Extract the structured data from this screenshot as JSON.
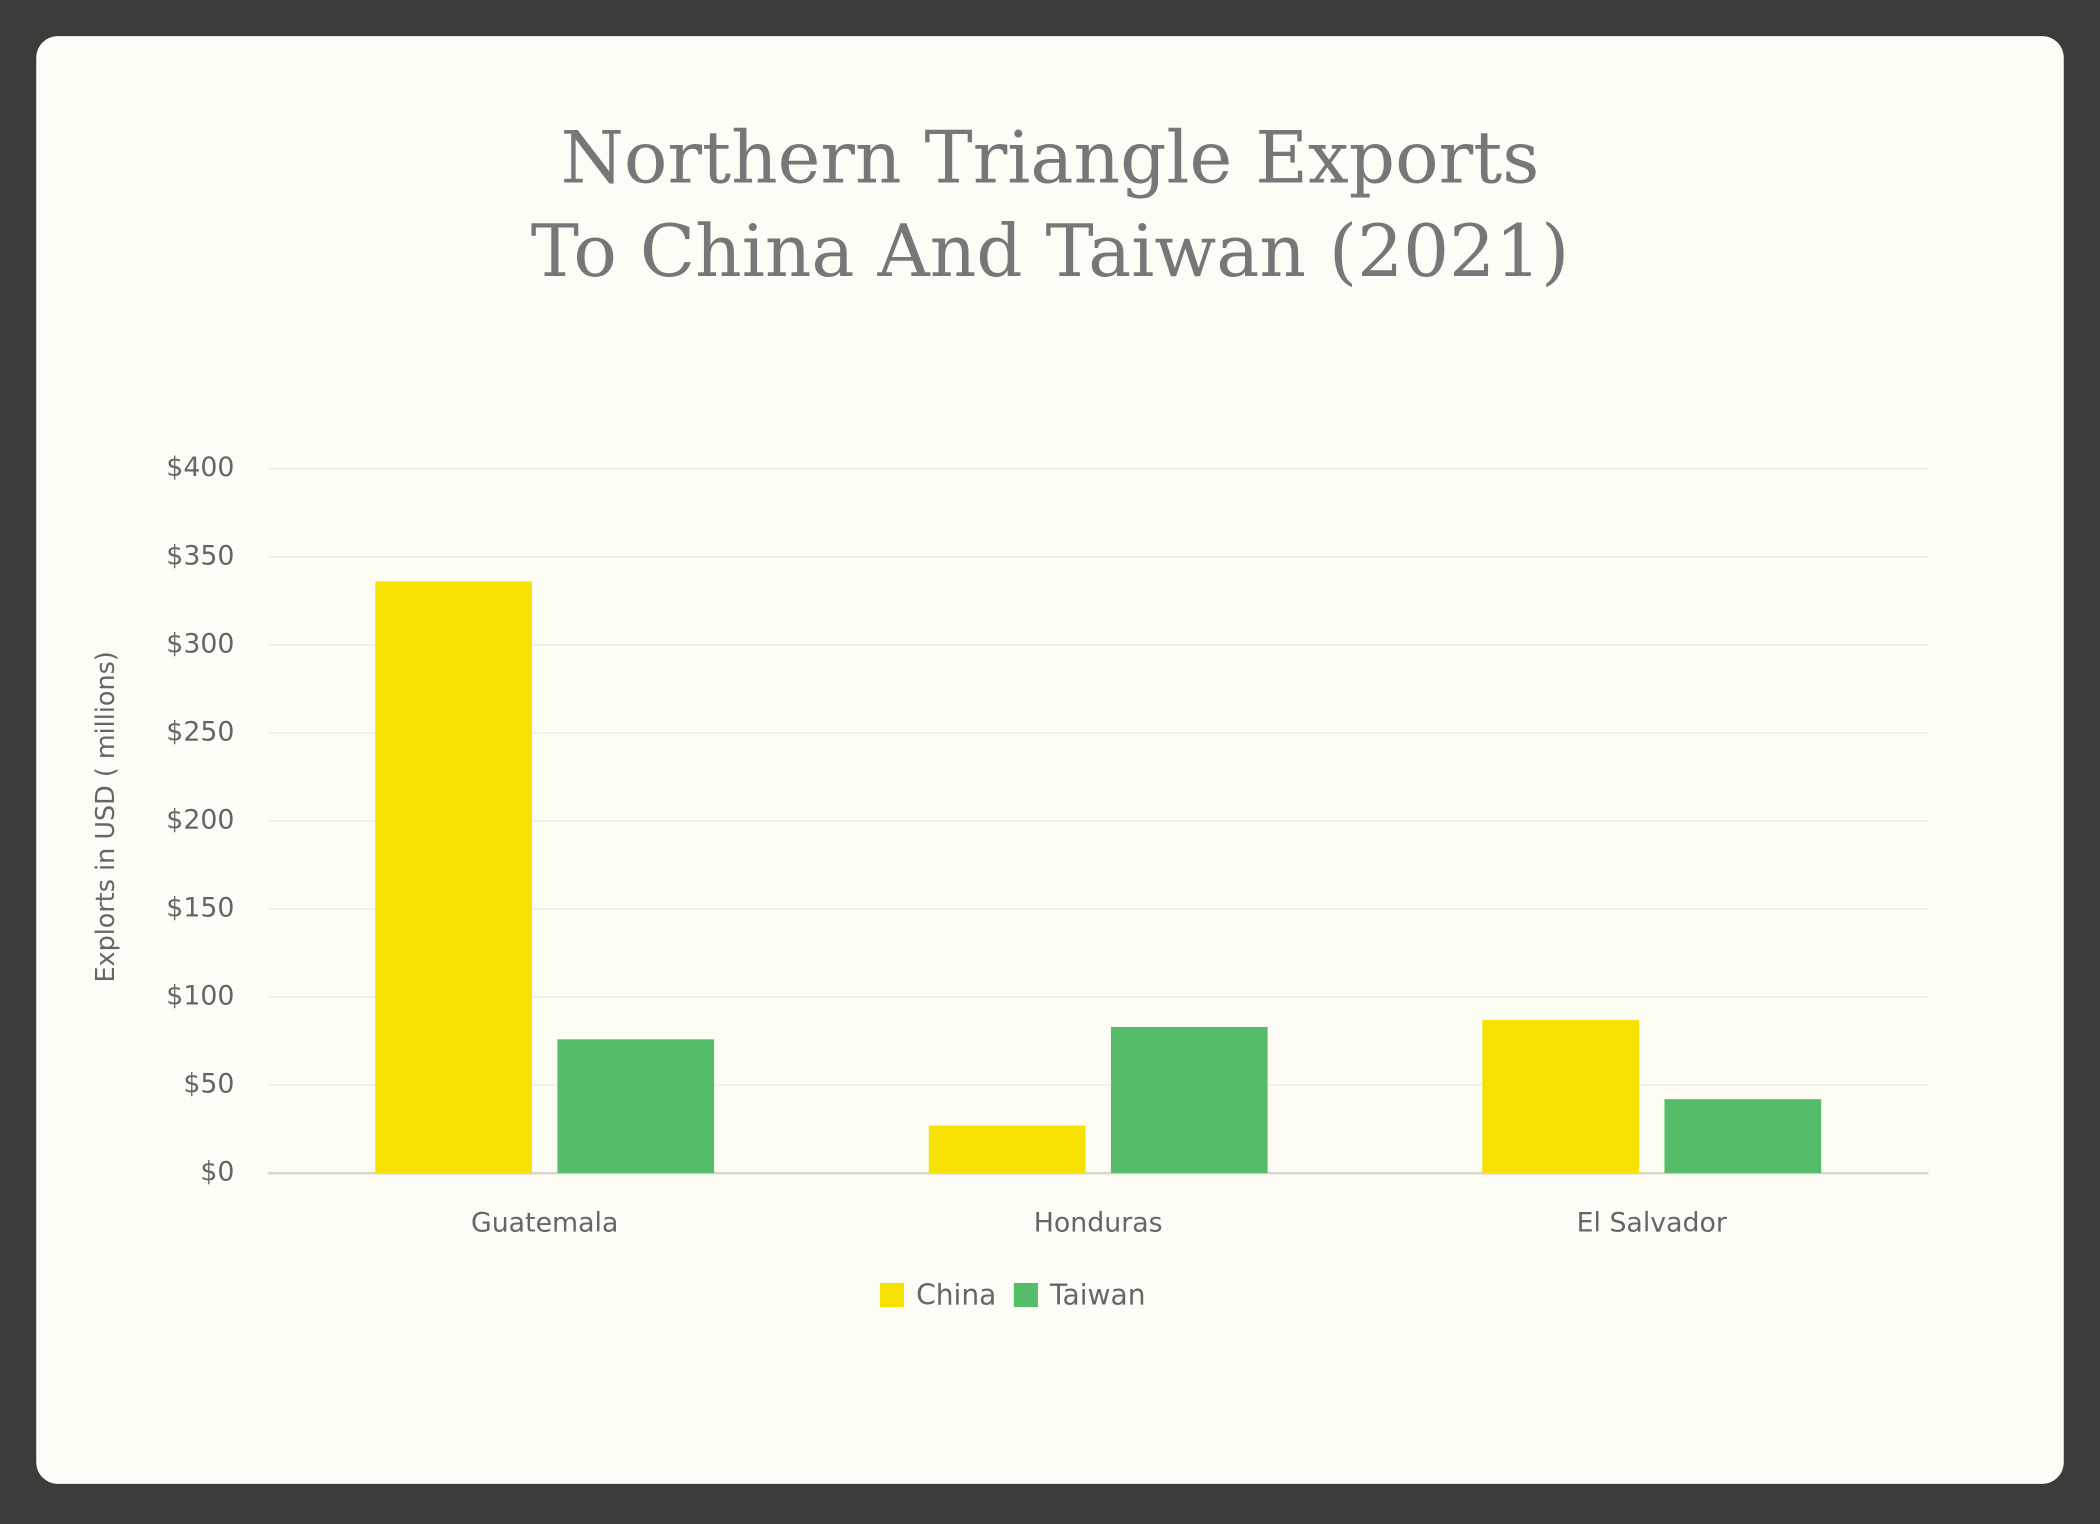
{
  "chart_data": {
    "type": "bar",
    "title": [
      "Northern Triangle Exports",
      "To China And Taiwan (2021)"
    ],
    "y_label": "Explorts in USD ( millions)",
    "categories": [
      "Guatemala",
      "Honduras",
      "El Salvador"
    ],
    "series": [
      {
        "name": "China",
        "color": "#f7e100",
        "values": [
          336,
          27,
          87
        ]
      },
      {
        "name": "Taiwan",
        "color": "#55bd6a",
        "values": [
          76,
          83,
          42
        ]
      }
    ],
    "ylim": [
      0,
      400
    ],
    "yticks": [
      {
        "value": 0,
        "label": "$0"
      },
      {
        "value": 50,
        "label": "$50"
      },
      {
        "value": 100,
        "label": "$100"
      },
      {
        "value": 150,
        "label": "$150"
      },
      {
        "value": 200,
        "label": "$200"
      },
      {
        "value": 250,
        "label": "$250"
      },
      {
        "value": 300,
        "label": "$300"
      },
      {
        "value": 350,
        "label": "$350"
      },
      {
        "value": 400,
        "label": "$400"
      }
    ],
    "grid": true,
    "legend": "bottom"
  }
}
